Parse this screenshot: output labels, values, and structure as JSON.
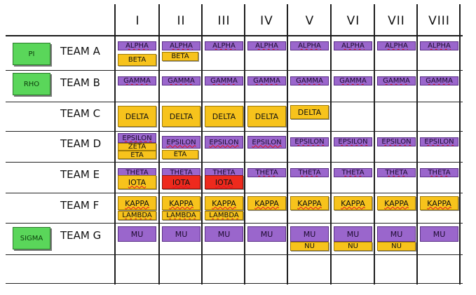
{
  "columns": [
    "I",
    "II",
    "III",
    "IV",
    "V",
    "VI",
    "VII",
    "VIII"
  ],
  "teams": [
    {
      "label": "TEAM A",
      "tag": "PI"
    },
    {
      "label": "TEAM B",
      "tag": "RHO"
    },
    {
      "label": "TEAM C",
      "tag": ""
    },
    {
      "label": "TEAM D",
      "tag": ""
    },
    {
      "label": "TEAM E",
      "tag": ""
    },
    {
      "label": "TEAM F",
      "tag": ""
    },
    {
      "label": "TEAM G",
      "tag": "SIGMA"
    }
  ],
  "cards": [
    {
      "team": 0,
      "col": 0,
      "label": "ALPHA",
      "color": "purple",
      "slot": "top"
    },
    {
      "team": 0,
      "col": 1,
      "label": "ALPHA",
      "color": "purple",
      "slot": "top"
    },
    {
      "team": 0,
      "col": 2,
      "label": "ALPHA",
      "color": "purple",
      "slot": "top"
    },
    {
      "team": 0,
      "col": 3,
      "label": "ALPHA",
      "color": "purple",
      "slot": "top"
    },
    {
      "team": 0,
      "col": 4,
      "label": "ALPHA",
      "color": "purple",
      "slot": "top"
    },
    {
      "team": 0,
      "col": 5,
      "label": "ALPHA",
      "color": "purple",
      "slot": "top"
    },
    {
      "team": 0,
      "col": 6,
      "label": "ALPHA",
      "color": "purple",
      "slot": "top"
    },
    {
      "team": 0,
      "col": 7,
      "label": "ALPHA",
      "color": "purple",
      "slot": "top"
    },
    {
      "team": 0,
      "col": 0,
      "label": "BETA",
      "color": "yellow",
      "slot": "a-beta-1"
    },
    {
      "team": 0,
      "col": 1,
      "label": "BETA",
      "color": "yellow",
      "slot": "a-beta-2"
    },
    {
      "team": 1,
      "col": 0,
      "label": "GAMMA",
      "color": "purple",
      "slot": "top"
    },
    {
      "team": 1,
      "col": 1,
      "label": "GAMMA",
      "color": "purple",
      "slot": "top"
    },
    {
      "team": 1,
      "col": 2,
      "label": "GAMMA",
      "color": "purple",
      "slot": "top"
    },
    {
      "team": 1,
      "col": 3,
      "label": "GAMMA",
      "color": "purple",
      "slot": "top"
    },
    {
      "team": 1,
      "col": 4,
      "label": "GAMMA",
      "color": "purple",
      "slot": "top"
    },
    {
      "team": 1,
      "col": 5,
      "label": "GAMMA",
      "color": "purple",
      "slot": "top"
    },
    {
      "team": 1,
      "col": 6,
      "label": "GAMMA",
      "color": "purple",
      "slot": "top"
    },
    {
      "team": 1,
      "col": 7,
      "label": "GAMMA",
      "color": "purple",
      "slot": "top"
    },
    {
      "team": 2,
      "col": 0,
      "label": "DELTA",
      "color": "yellow",
      "slot": "big"
    },
    {
      "team": 2,
      "col": 1,
      "label": "DELTA",
      "color": "yellow",
      "slot": "big"
    },
    {
      "team": 2,
      "col": 2,
      "label": "DELTA",
      "color": "yellow",
      "slot": "big"
    },
    {
      "team": 2,
      "col": 3,
      "label": "DELTA",
      "color": "yellow",
      "slot": "big"
    },
    {
      "team": 2,
      "col": 4,
      "label": "DELTA",
      "color": "yellow",
      "slot": "c-delta-5"
    },
    {
      "team": 3,
      "col": 0,
      "label": "EPSILON",
      "color": "purple",
      "slot": "d-eps-1"
    },
    {
      "team": 3,
      "col": 0,
      "label": "ZETA",
      "color": "yellow",
      "slot": "d-zeta"
    },
    {
      "team": 3,
      "col": 0,
      "label": "ETA",
      "color": "yellow",
      "slot": "d-eta-1"
    },
    {
      "team": 3,
      "col": 1,
      "label": "EPSILON",
      "color": "purple",
      "slot": "d-eps-mid"
    },
    {
      "team": 3,
      "col": 1,
      "label": "ETA",
      "color": "yellow",
      "slot": "d-eta-2"
    },
    {
      "team": 3,
      "col": 2,
      "label": "EPSILON",
      "color": "purple",
      "slot": "d-eps-mid"
    },
    {
      "team": 3,
      "col": 3,
      "label": "EPSILON",
      "color": "purple",
      "slot": "d-eps-mid"
    },
    {
      "team": 3,
      "col": 4,
      "label": "EPSILON",
      "color": "purple",
      "slot": "top"
    },
    {
      "team": 3,
      "col": 5,
      "label": "EPSILON",
      "color": "purple",
      "slot": "top"
    },
    {
      "team": 3,
      "col": 6,
      "label": "EPSILON",
      "color": "purple",
      "slot": "top"
    },
    {
      "team": 3,
      "col": 7,
      "label": "EPSILON",
      "color": "purple",
      "slot": "top"
    },
    {
      "team": 4,
      "col": 0,
      "label": "THETA",
      "color": "purple",
      "slot": "top"
    },
    {
      "team": 4,
      "col": 1,
      "label": "THETA",
      "color": "purple",
      "slot": "top"
    },
    {
      "team": 4,
      "col": 2,
      "label": "THETA",
      "color": "purple",
      "slot": "top"
    },
    {
      "team": 4,
      "col": 3,
      "label": "THETA",
      "color": "purple",
      "slot": "top"
    },
    {
      "team": 4,
      "col": 4,
      "label": "THETA",
      "color": "purple",
      "slot": "top"
    },
    {
      "team": 4,
      "col": 5,
      "label": "THETA",
      "color": "purple",
      "slot": "top"
    },
    {
      "team": 4,
      "col": 6,
      "label": "THETA",
      "color": "purple",
      "slot": "top"
    },
    {
      "team": 4,
      "col": 7,
      "label": "THETA",
      "color": "purple",
      "slot": "top"
    },
    {
      "team": 4,
      "col": 0,
      "label": "IOTA",
      "color": "yellow",
      "slot": "e-iota"
    },
    {
      "team": 4,
      "col": 1,
      "label": "IOTA",
      "color": "red",
      "slot": "e-iota"
    },
    {
      "team": 4,
      "col": 2,
      "label": "IOTA",
      "color": "red",
      "slot": "e-iota"
    },
    {
      "team": 5,
      "col": 0,
      "label": "KAPPA",
      "color": "yellow",
      "slot": "f-kappa"
    },
    {
      "team": 5,
      "col": 1,
      "label": "KAPPA",
      "color": "yellow",
      "slot": "f-kappa"
    },
    {
      "team": 5,
      "col": 2,
      "label": "KAPPA",
      "color": "yellow",
      "slot": "f-kappa"
    },
    {
      "team": 5,
      "col": 3,
      "label": "KAPPA",
      "color": "yellow",
      "slot": "f-kappa"
    },
    {
      "team": 5,
      "col": 4,
      "label": "KAPPA",
      "color": "yellow",
      "slot": "f-kappa"
    },
    {
      "team": 5,
      "col": 5,
      "label": "KAPPA",
      "color": "yellow",
      "slot": "f-kappa"
    },
    {
      "team": 5,
      "col": 6,
      "label": "KAPPA",
      "color": "yellow",
      "slot": "f-kappa"
    },
    {
      "team": 5,
      "col": 7,
      "label": "KAPPA",
      "color": "yellow",
      "slot": "f-kappa"
    },
    {
      "team": 5,
      "col": 0,
      "label": "LAMBDA",
      "color": "yellow",
      "slot": "f-lambda"
    },
    {
      "team": 5,
      "col": 1,
      "label": "LAMBDA",
      "color": "yellow",
      "slot": "f-lambda"
    },
    {
      "team": 5,
      "col": 2,
      "label": "LAMBDA",
      "color": "yellow",
      "slot": "f-lambda"
    },
    {
      "team": 6,
      "col": 0,
      "label": "MU",
      "color": "purple",
      "slot": "g-mu"
    },
    {
      "team": 6,
      "col": 1,
      "label": "MU",
      "color": "purple",
      "slot": "g-mu"
    },
    {
      "team": 6,
      "col": 2,
      "label": "MU",
      "color": "purple",
      "slot": "g-mu"
    },
    {
      "team": 6,
      "col": 3,
      "label": "MU",
      "color": "purple",
      "slot": "g-mu"
    },
    {
      "team": 6,
      "col": 4,
      "label": "MU",
      "color": "purple",
      "slot": "g-mu"
    },
    {
      "team": 6,
      "col": 5,
      "label": "MU",
      "color": "purple",
      "slot": "g-mu"
    },
    {
      "team": 6,
      "col": 6,
      "label": "MU",
      "color": "purple",
      "slot": "g-mu"
    },
    {
      "team": 6,
      "col": 7,
      "label": "MU",
      "color": "purple",
      "slot": "g-mu"
    },
    {
      "team": 6,
      "col": 4,
      "label": "NU",
      "color": "yellow",
      "slot": "g-nu"
    },
    {
      "team": 6,
      "col": 5,
      "label": "NU",
      "color": "yellow",
      "slot": "g-nu"
    },
    {
      "team": 6,
      "col": 6,
      "label": "NU",
      "color": "yellow",
      "slot": "g-nu"
    }
  ],
  "colors": {
    "purple": "#9a66cc",
    "yellow": "#f7c31c",
    "red": "#ee2a1d",
    "tag_green": "#5ad65a"
  }
}
